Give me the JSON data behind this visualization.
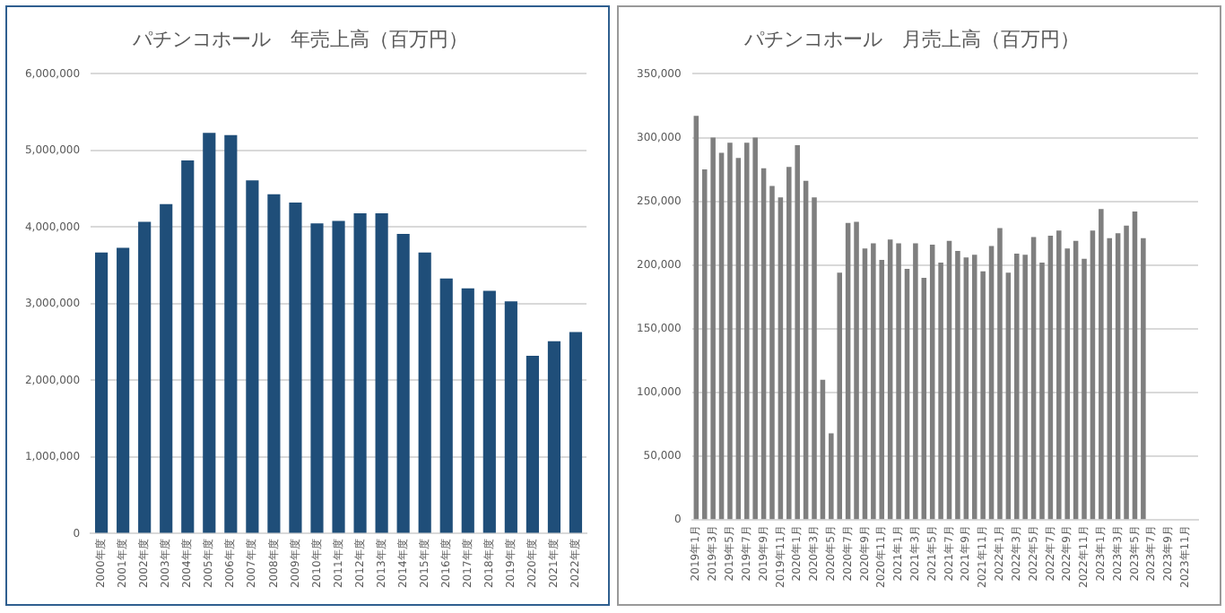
{
  "chart_data": [
    {
      "type": "bar",
      "title": "パチンコホール　年売上高（百万円）",
      "categories": [
        "2000年度",
        "2001年度",
        "2002年度",
        "2003年度",
        "2004年度",
        "2005年度",
        "2006年度",
        "2007年度",
        "2008年度",
        "2009年度",
        "2010年度",
        "2011年度",
        "2012年度",
        "2013年度",
        "2014年度",
        "2015年度",
        "2016年度",
        "2017年度",
        "2018年度",
        "2019年度",
        "2020年度",
        "2021年度",
        "2022年度"
      ],
      "series": [
        {
          "color": "#1f4e79",
          "values": [
            3670000,
            3730000,
            4070000,
            4300000,
            4870000,
            5230000,
            5200000,
            4610000,
            4430000,
            4320000,
            4050000,
            4080000,
            4180000,
            4180000,
            3910000,
            3670000,
            3330000,
            3200000,
            3170000,
            3030000,
            2320000,
            2510000,
            2630000
          ]
        }
      ],
      "ylim": [
        0,
        6000000
      ],
      "yticks": [
        {
          "value": 0,
          "label": "0"
        },
        {
          "value": 1000000,
          "label": "1,000,000"
        },
        {
          "value": 2000000,
          "label": "2,000,000"
        },
        {
          "value": 3000000,
          "label": "3,000,000"
        },
        {
          "value": 4000000,
          "label": "4,000,000"
        },
        {
          "value": 5000000,
          "label": "5,000,000"
        },
        {
          "value": 6000000,
          "label": "6,000,000"
        }
      ],
      "grid": "y",
      "legend": false
    },
    {
      "type": "bar",
      "title": "パチンコホール　月売上高（百万円）",
      "categories": [
        "2019年1月",
        null,
        "2019年3月",
        null,
        "2019年5月",
        null,
        "2019年7月",
        null,
        "2019年9月",
        null,
        "2019年11月",
        null,
        "2020年1月",
        null,
        "2020年3月",
        null,
        "2020年5月",
        null,
        "2020年7月",
        null,
        "2020年9月",
        null,
        "2020年11月",
        null,
        "2021年1月",
        null,
        "2021年3月",
        null,
        "2021年5月",
        null,
        "2021年7月",
        null,
        "2021年9月",
        null,
        "2021年11月",
        null,
        "2022年1月",
        null,
        "2022年3月",
        null,
        "2022年5月",
        null,
        "2022年7月",
        null,
        "2022年9月",
        null,
        "2022年11月",
        null,
        "2023年1月",
        null,
        "2023年3月",
        null,
        "2023年5月",
        null,
        "2023年7月",
        null,
        "2023年9月",
        null,
        "2023年11月",
        null
      ],
      "series": [
        {
          "color": "#7f7f7f",
          "values": [
            317000,
            275000,
            300000,
            288000,
            296000,
            284000,
            296000,
            300000,
            276000,
            262000,
            253000,
            277000,
            294000,
            266000,
            253000,
            110000,
            68000,
            194000,
            233000,
            234000,
            213000,
            217000,
            204000,
            220000,
            217000,
            197000,
            217000,
            190000,
            216000,
            202000,
            219000,
            211000,
            206000,
            208000,
            195000,
            215000,
            229000,
            194000,
            209000,
            208000,
            222000,
            202000,
            223000,
            227000,
            213000,
            219000,
            205000,
            227000,
            244000,
            221000,
            225000,
            231000,
            242000,
            221000,
            null,
            null,
            null,
            null,
            null,
            null
          ]
        }
      ],
      "ylim": [
        0,
        350000
      ],
      "yticks": [
        {
          "value": 0,
          "label": "0"
        },
        {
          "value": 50000,
          "label": "50,000"
        },
        {
          "value": 100000,
          "label": "100,000"
        },
        {
          "value": 150000,
          "label": "150,000"
        },
        {
          "value": 200000,
          "label": "200,000"
        },
        {
          "value": 250000,
          "label": "250,000"
        },
        {
          "value": 300000,
          "label": "300,000"
        },
        {
          "value": 350000,
          "label": "350,000"
        }
      ],
      "grid": "y",
      "legend": false
    }
  ]
}
